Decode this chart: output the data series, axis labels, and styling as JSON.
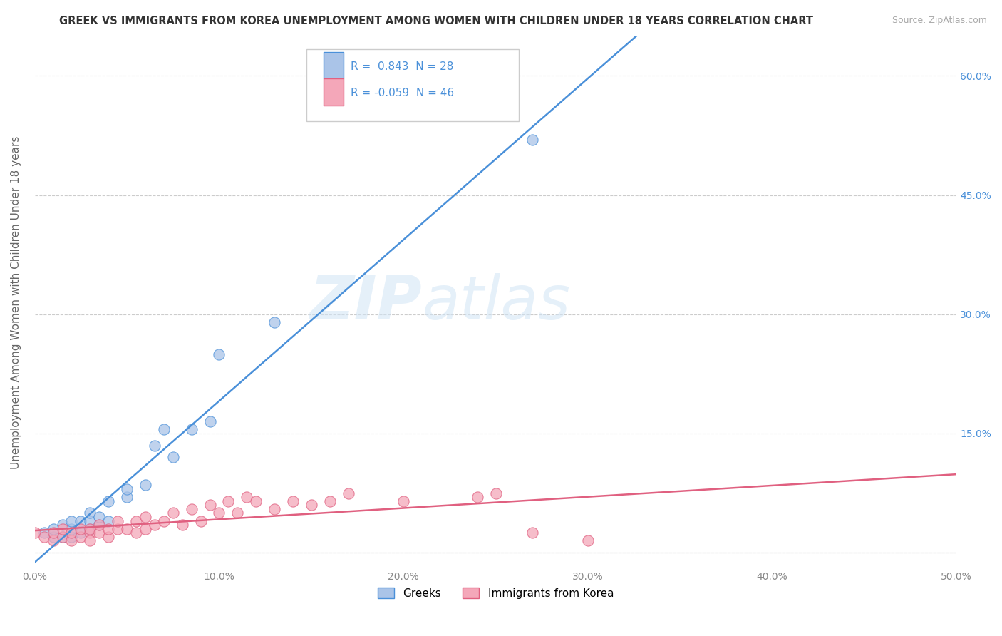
{
  "title": "GREEK VS IMMIGRANTS FROM KOREA UNEMPLOYMENT AMONG WOMEN WITH CHILDREN UNDER 18 YEARS CORRELATION CHART",
  "source": "Source: ZipAtlas.com",
  "ylabel": "Unemployment Among Women with Children Under 18 years",
  "xlim": [
    0.0,
    0.5
  ],
  "ylim": [
    -0.02,
    0.65
  ],
  "xticks": [
    0.0,
    0.1,
    0.2,
    0.3,
    0.4,
    0.5
  ],
  "xticklabels": [
    "0.0%",
    "10.0%",
    "20.0%",
    "30.0%",
    "40.0%",
    "50.0%"
  ],
  "yticks": [
    0.0,
    0.15,
    0.3,
    0.45,
    0.6
  ],
  "yticklabels": [
    "",
    "15.0%",
    "30.0%",
    "45.0%",
    "60.0%"
  ],
  "greek_R": 0.843,
  "greek_N": 28,
  "korea_R": -0.059,
  "korea_N": 46,
  "greek_color": "#aac4e8",
  "korea_color": "#f4a7b9",
  "greek_line_color": "#4a90d9",
  "korea_line_color": "#e06080",
  "watermark_zip": "ZIP",
  "watermark_atlas": "atlas",
  "background_color": "#ffffff",
  "grid_color": "#cccccc",
  "greek_scatter_x": [
    0.005,
    0.01,
    0.01,
    0.015,
    0.015,
    0.02,
    0.02,
    0.02,
    0.025,
    0.025,
    0.03,
    0.03,
    0.03,
    0.035,
    0.035,
    0.04,
    0.04,
    0.05,
    0.05,
    0.06,
    0.065,
    0.07,
    0.075,
    0.085,
    0.095,
    0.1,
    0.13,
    0.27
  ],
  "greek_scatter_y": [
    0.025,
    0.02,
    0.03,
    0.02,
    0.035,
    0.02,
    0.03,
    0.04,
    0.025,
    0.04,
    0.03,
    0.04,
    0.05,
    0.035,
    0.045,
    0.04,
    0.065,
    0.07,
    0.08,
    0.085,
    0.135,
    0.155,
    0.12,
    0.155,
    0.165,
    0.25,
    0.29,
    0.52
  ],
  "korea_scatter_x": [
    0.0,
    0.005,
    0.01,
    0.01,
    0.015,
    0.015,
    0.02,
    0.02,
    0.025,
    0.025,
    0.03,
    0.03,
    0.03,
    0.035,
    0.035,
    0.04,
    0.04,
    0.045,
    0.045,
    0.05,
    0.055,
    0.055,
    0.06,
    0.06,
    0.065,
    0.07,
    0.075,
    0.08,
    0.085,
    0.09,
    0.095,
    0.1,
    0.105,
    0.11,
    0.115,
    0.12,
    0.13,
    0.14,
    0.15,
    0.16,
    0.17,
    0.2,
    0.24,
    0.25,
    0.27,
    0.3
  ],
  "korea_scatter_y": [
    0.025,
    0.02,
    0.015,
    0.025,
    0.02,
    0.03,
    0.015,
    0.025,
    0.02,
    0.03,
    0.025,
    0.015,
    0.03,
    0.025,
    0.035,
    0.02,
    0.03,
    0.03,
    0.04,
    0.03,
    0.025,
    0.04,
    0.03,
    0.045,
    0.035,
    0.04,
    0.05,
    0.035,
    0.055,
    0.04,
    0.06,
    0.05,
    0.065,
    0.05,
    0.07,
    0.065,
    0.055,
    0.065,
    0.06,
    0.065,
    0.075,
    0.065,
    0.07,
    0.075,
    0.025,
    0.015
  ]
}
